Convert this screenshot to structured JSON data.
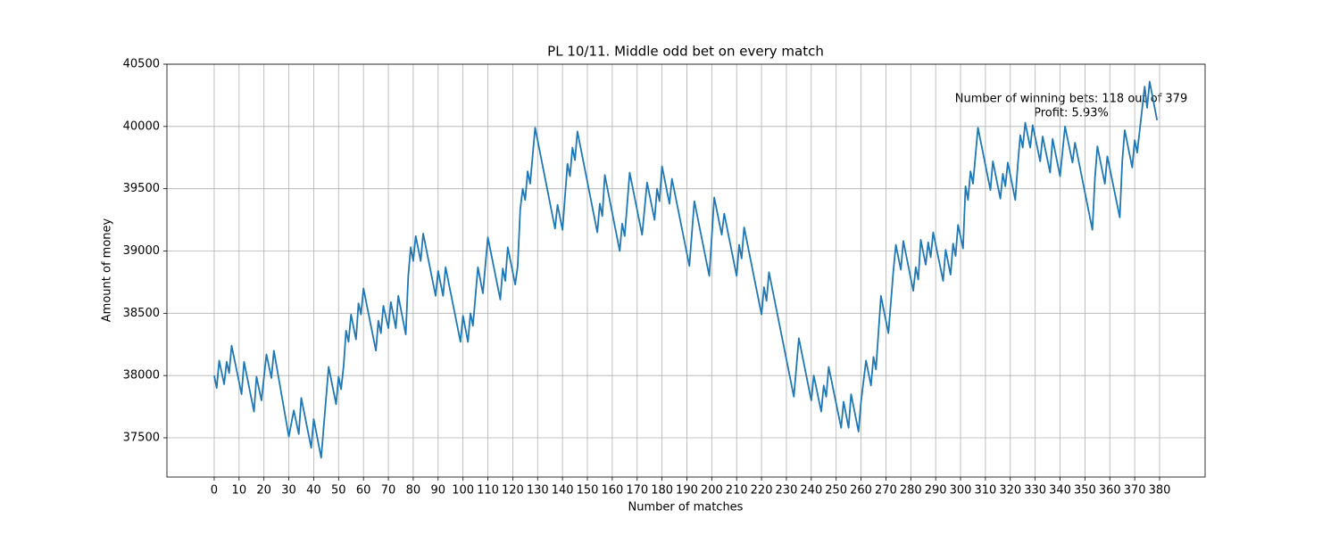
{
  "chart_data": {
    "type": "line",
    "title": "PL 10/11. Middle odd bet on every match",
    "x_label": "Number of matches",
    "y_label": "Amount of money",
    "annotation": [
      "Number of winning bets: 118 out of 379",
      "Profit: 5.93%"
    ],
    "color": "#1f77b4",
    "grid": true,
    "xlim": [
      -19,
      398.3
    ],
    "ylim": [
      37185,
      40500
    ],
    "xticks": [
      0,
      10,
      20,
      30,
      40,
      50,
      60,
      70,
      80,
      90,
      100,
      110,
      120,
      130,
      140,
      150,
      160,
      170,
      180,
      190,
      200,
      210,
      220,
      230,
      240,
      250,
      260,
      270,
      280,
      290,
      300,
      310,
      320,
      330,
      340,
      350,
      360,
      370,
      380
    ],
    "yticks": [
      37500,
      38000,
      38500,
      39000,
      39500,
      40000,
      40500
    ],
    "x": [
      0,
      1,
      2,
      4,
      5,
      6,
      7,
      11,
      12,
      16,
      17,
      19,
      21,
      23,
      24,
      30,
      32,
      34,
      35,
      39,
      40,
      43,
      46,
      49,
      50,
      51,
      52,
      53,
      54,
      55,
      57,
      58,
      59,
      60,
      65,
      66,
      67,
      68,
      70,
      71,
      73,
      74,
      77,
      78,
      79,
      80,
      81,
      83,
      84,
      89,
      90,
      92,
      93,
      99,
      100,
      102,
      103,
      104,
      106,
      108,
      110,
      115,
      116,
      117,
      118,
      121,
      122,
      123,
      124,
      125,
      126,
      127,
      129,
      137,
      138,
      140,
      142,
      143,
      144,
      145,
      146,
      154,
      155,
      156,
      157,
      163,
      164,
      165,
      167,
      172,
      174,
      177,
      178,
      179,
      180,
      183,
      184,
      191,
      193,
      199,
      201,
      204,
      205,
      210,
      211,
      212,
      213,
      220,
      221,
      222,
      223,
      233,
      235,
      240,
      241,
      244,
      245,
      246,
      247,
      252,
      253,
      255,
      256,
      259,
      260,
      262,
      264,
      265,
      266,
      268,
      271,
      273,
      274,
      276,
      277,
      281,
      282,
      283,
      284,
      286,
      287,
      288,
      289,
      293,
      294,
      296,
      297,
      298,
      299,
      301,
      302,
      303,
      304,
      305,
      307,
      312,
      313,
      316,
      317,
      318,
      319,
      322,
      323,
      324,
      325,
      326,
      328,
      329,
      332,
      333,
      336,
      337,
      340,
      342,
      345,
      346,
      353,
      354,
      355,
      358,
      359,
      364,
      365,
      366,
      369,
      370,
      371,
      374,
      375,
      376,
      379
    ],
    "values": [
      38000,
      37900,
      38120,
      37930,
      38110,
      38020,
      38240,
      37850,
      38110,
      37710,
      37990,
      37800,
      38170,
      37980,
      38200,
      37510,
      37720,
      37530,
      37820,
      37420,
      37650,
      37340,
      38070,
      37770,
      37990,
      37890,
      38070,
      38360,
      38270,
      38490,
      38290,
      38580,
      38490,
      38700,
      38200,
      38440,
      38340,
      38560,
      38380,
      38590,
      38380,
      38640,
      38330,
      38800,
      39030,
      38920,
      39120,
      38920,
      39140,
      38640,
      38840,
      38640,
      38870,
      38270,
      38480,
      38270,
      38500,
      38400,
      38870,
      38660,
      39110,
      38610,
      38860,
      38760,
      39030,
      38730,
      38880,
      39330,
      39500,
      39410,
      39640,
      39540,
      39990,
      39180,
      39370,
      39170,
      39700,
      39600,
      39830,
      39730,
      39960,
      39150,
      39380,
      39280,
      39610,
      39000,
      39220,
      39120,
      39630,
      39130,
      39550,
      39250,
      39500,
      39400,
      39680,
      39380,
      39580,
      38880,
      39400,
      38800,
      39430,
      39130,
      39300,
      38800,
      39050,
      38940,
      39190,
      38490,
      38710,
      38600,
      38830,
      37830,
      38300,
      37800,
      38000,
      37710,
      37920,
      37830,
      38070,
      37580,
      37790,
      37580,
      37850,
      37550,
      37790,
      38120,
      37920,
      38150,
      38050,
      38640,
      38340,
      38840,
      39050,
      38850,
      39080,
      38680,
      38870,
      38770,
      39090,
      38890,
      39070,
      38950,
      39150,
      38760,
      39010,
      38810,
      39060,
      38960,
      39210,
      39020,
      39520,
      39410,
      39640,
      39540,
      39990,
      39490,
      39720,
      39420,
      39620,
      39520,
      39710,
      39410,
      39690,
      39930,
      39830,
      40030,
      39830,
      40010,
      39720,
      39920,
      39630,
      39900,
      39600,
      40000,
      39710,
      39870,
      39170,
      39580,
      39840,
      39540,
      39760,
      39270,
      39720,
      39970,
      39670,
      39890,
      39790,
      40320,
      40150,
      40360,
      40050
    ]
  }
}
